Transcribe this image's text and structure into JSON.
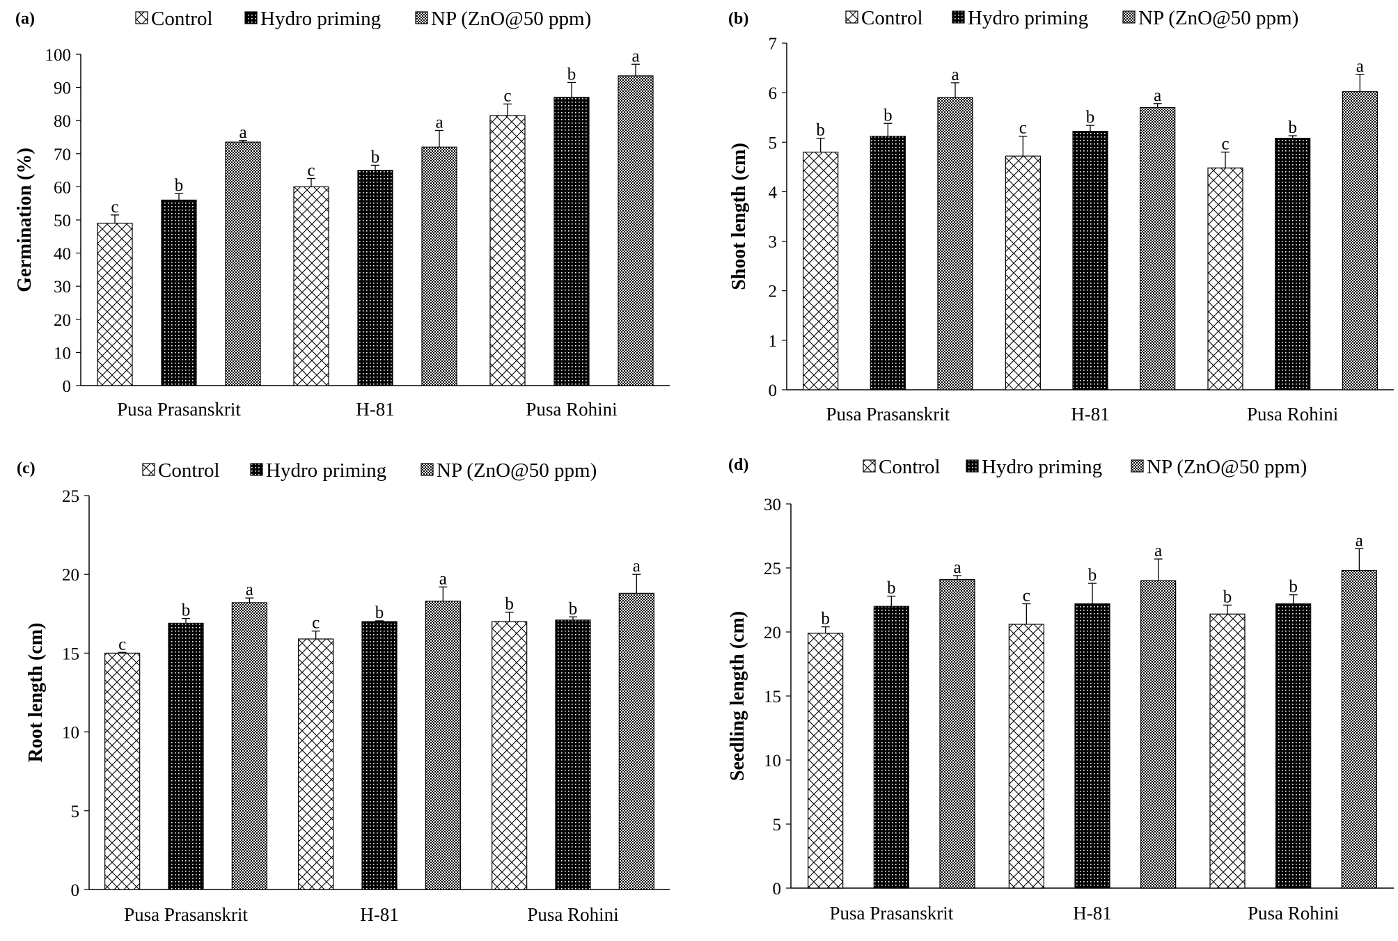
{
  "chart_data": [
    {
      "panel": "(a)",
      "type": "bar",
      "title": "",
      "xlabel": "",
      "ylabel": "Germination  (%)",
      "ylim": [
        0,
        100
      ],
      "yticks": [
        0,
        10,
        20,
        30,
        40,
        50,
        60,
        70,
        80,
        90,
        100
      ],
      "grid": false,
      "legend_position": "top",
      "categories": [
        "Pusa Prasanskrit",
        "H-81",
        "Pusa Rohini"
      ],
      "series": [
        {
          "name": "Control",
          "pattern": "diagonal-cross",
          "values": [
            49,
            60,
            81.5
          ],
          "errors": [
            2.5,
            2.5,
            3.5
          ],
          "letters": [
            "c",
            "c",
            "c"
          ]
        },
        {
          "name": "Hydro priming",
          "pattern": "dense-dots",
          "values": [
            56,
            65,
            87
          ],
          "errors": [
            2,
            1.5,
            4.5
          ],
          "letters": [
            "b",
            "b",
            "b"
          ]
        },
        {
          "name": "NP (ZnO@50 ppm)",
          "pattern": "checker",
          "values": [
            73.5,
            72,
            93.5
          ],
          "errors": [
            0.5,
            5,
            3.5
          ],
          "letters": [
            "a",
            "a",
            "a"
          ]
        }
      ]
    },
    {
      "panel": "(b)",
      "type": "bar",
      "title": "",
      "xlabel": "",
      "ylabel": "Shoot length (cm)",
      "ylim": [
        0,
        7
      ],
      "yticks": [
        0,
        1,
        2,
        3,
        4,
        5,
        6,
        7
      ],
      "grid": false,
      "legend_position": "top",
      "categories": [
        "Pusa Prasanskrit",
        "H-81",
        "Pusa Rohini"
      ],
      "series": [
        {
          "name": "Control",
          "pattern": "diagonal-cross",
          "values": [
            4.8,
            4.72,
            4.48
          ],
          "errors": [
            0.28,
            0.4,
            0.32
          ],
          "letters": [
            "b",
            "c",
            "c"
          ]
        },
        {
          "name": "Hydro priming",
          "pattern": "dense-dots",
          "values": [
            5.12,
            5.22,
            5.08
          ],
          "errors": [
            0.26,
            0.12,
            0.05
          ],
          "letters": [
            "b",
            "b",
            "b"
          ]
        },
        {
          "name": "NP (ZnO@50 ppm)",
          "pattern": "checker",
          "values": [
            5.9,
            5.7,
            6.02
          ],
          "errors": [
            0.3,
            0.08,
            0.35
          ],
          "letters": [
            "a",
            "a",
            "a"
          ]
        }
      ]
    },
    {
      "panel": "(c)",
      "type": "bar",
      "title": "",
      "xlabel": "",
      "ylabel": "Root length (cm)",
      "ylim": [
        0,
        25
      ],
      "yticks": [
        0,
        5,
        10,
        15,
        20,
        25
      ],
      "grid": false,
      "legend_position": "top",
      "categories": [
        "Pusa Prasanskrit",
        "H-81",
        "Pusa Rohini"
      ],
      "series": [
        {
          "name": "Control",
          "pattern": "diagonal-cross",
          "values": [
            15,
            15.9,
            17
          ],
          "errors": [
            0.05,
            0.5,
            0.6
          ],
          "letters": [
            "c",
            "c",
            "b"
          ]
        },
        {
          "name": "Hydro priming",
          "pattern": "dense-dots",
          "values": [
            16.9,
            17,
            17.1
          ],
          "errors": [
            0.3,
            0.05,
            0.2
          ],
          "letters": [
            "b",
            "b",
            "b"
          ]
        },
        {
          "name": "NP (ZnO@50 ppm)",
          "pattern": "checker",
          "values": [
            18.2,
            18.3,
            18.8
          ],
          "errors": [
            0.3,
            0.9,
            1.2
          ],
          "letters": [
            "a",
            "a",
            "a"
          ]
        }
      ]
    },
    {
      "panel": "(d)",
      "type": "bar",
      "title": "",
      "xlabel": "",
      "ylabel": "Seedling length (cm)",
      "ylim": [
        0,
        30
      ],
      "yticks": [
        0,
        5,
        10,
        15,
        20,
        25,
        30
      ],
      "grid": false,
      "legend_position": "top",
      "categories": [
        "Pusa Prasanskrit",
        "H-81",
        "Pusa Rohini"
      ],
      "series": [
        {
          "name": "Control",
          "pattern": "diagonal-cross",
          "values": [
            19.9,
            20.6,
            21.4
          ],
          "errors": [
            0.5,
            1.6,
            0.7
          ],
          "letters": [
            "b",
            "c",
            "b"
          ]
        },
        {
          "name": "Hydro priming",
          "pattern": "dense-dots",
          "values": [
            22,
            22.2,
            22.2
          ],
          "errors": [
            0.8,
            1.6,
            0.7
          ],
          "letters": [
            "b",
            "b",
            "b"
          ]
        },
        {
          "name": "NP (ZnO@50 ppm)",
          "pattern": "checker",
          "values": [
            24.1,
            24,
            24.8
          ],
          "errors": [
            0.3,
            1.7,
            1.7
          ],
          "letters": [
            "a",
            "a",
            "a"
          ]
        }
      ]
    }
  ]
}
